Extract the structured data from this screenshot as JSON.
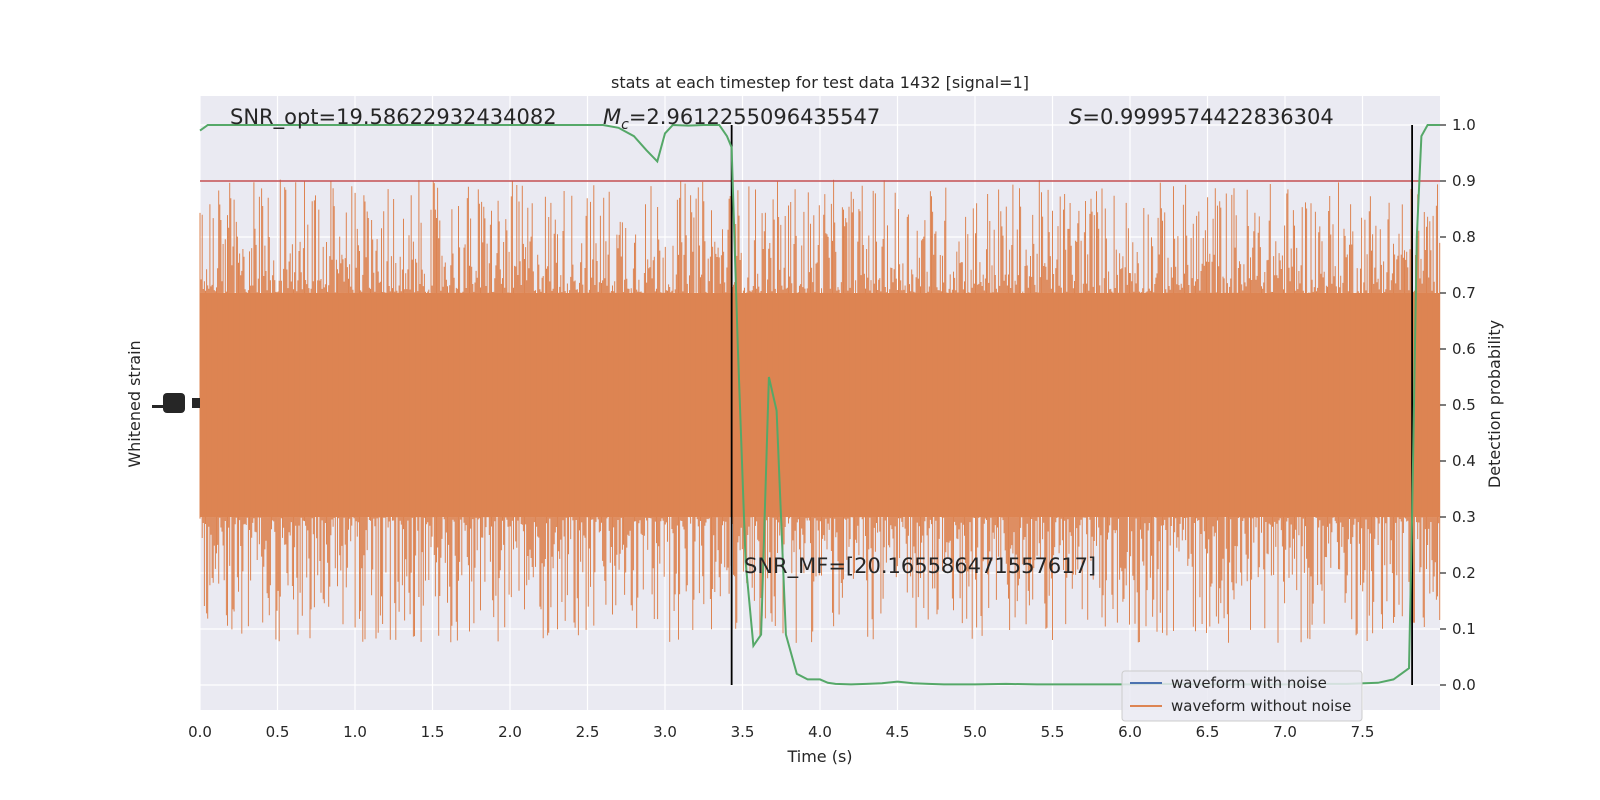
{
  "chart_data": {
    "type": "line",
    "title": "stats at each timestep for test data 1432 [signal=1]",
    "xlabel": "Time (s)",
    "ylabel_left": "Whitened strain",
    "ylabel_right": "Detection probability",
    "xlim": [
      0.0,
      8.0
    ],
    "ylim_right": [
      -0.05,
      1.05
    ],
    "grid": true,
    "x_ticks": [
      "0.0",
      "0.5",
      "1.0",
      "1.5",
      "2.0",
      "2.5",
      "3.0",
      "3.5",
      "4.0",
      "4.5",
      "5.0",
      "5.5",
      "6.0",
      "6.5",
      "7.0",
      "7.5"
    ],
    "y_ticks_right": [
      "0.0",
      "0.1",
      "0.2",
      "0.3",
      "0.4",
      "0.5",
      "0.6",
      "0.7",
      "0.8",
      "0.9",
      "1.0"
    ],
    "annotations": {
      "snr_opt": "SNR_opt=19.58622932434082",
      "mc_symbol": "M",
      "mc_sub": "c",
      "mc_value": "=2.9612255096435547",
      "s_symbol": "S",
      "s_value": "=0.9999574422836304",
      "snr_mf": "SNR_MF=[20.165586471557617]"
    },
    "threshold": 0.9,
    "vlines": [
      3.43,
      7.82
    ],
    "series": [
      {
        "name": "waveform with noise",
        "color": "#4c72b0",
        "values": []
      },
      {
        "name": "waveform without noise",
        "color": "#dd8452",
        "band_low": 0.3,
        "band_high": 0.7,
        "spike_min": 0.0,
        "spike_max": 0.97
      },
      {
        "name": "",
        "color": "#55a868",
        "x": [
          0.0,
          0.05,
          0.2,
          0.4,
          0.6,
          0.8,
          1.0,
          1.2,
          1.4,
          1.6,
          1.8,
          2.0,
          2.2,
          2.4,
          2.6,
          2.7,
          2.8,
          2.88,
          2.95,
          3.0,
          3.05,
          3.15,
          3.25,
          3.35,
          3.4,
          3.43,
          3.47,
          3.52,
          3.57,
          3.62,
          3.67,
          3.72,
          3.78,
          3.85,
          3.92,
          4.0,
          4.05,
          4.1,
          4.2,
          4.3,
          4.4,
          4.5,
          4.6,
          4.7,
          4.8,
          4.9,
          5.0,
          5.2,
          5.4,
          5.6,
          5.8,
          6.0,
          6.2,
          6.5,
          6.8,
          7.0,
          7.2,
          7.4,
          7.6,
          7.7,
          7.75,
          7.8,
          7.82,
          7.85,
          7.88,
          7.92,
          7.96,
          8.0
        ],
        "y": [
          0.99,
          1.0,
          1.0,
          1.0,
          1.0,
          1.0,
          1.0,
          1.0,
          1.0,
          1.0,
          1.0,
          1.0,
          1.0,
          1.0,
          1.0,
          0.995,
          0.98,
          0.955,
          0.935,
          0.985,
          1.0,
          0.999,
          1.0,
          1.0,
          0.98,
          0.96,
          0.6,
          0.22,
          0.07,
          0.09,
          0.55,
          0.49,
          0.09,
          0.02,
          0.01,
          0.01,
          0.004,
          0.002,
          0.001,
          0.002,
          0.003,
          0.006,
          0.003,
          0.002,
          0.001,
          0.001,
          0.001,
          0.002,
          0.001,
          0.001,
          0.001,
          0.001,
          0.002,
          0.001,
          0.001,
          0.001,
          0.002,
          0.002,
          0.004,
          0.01,
          0.02,
          0.03,
          0.3,
          0.8,
          0.98,
          1.0,
          1.0,
          1.0
        ]
      },
      {
        "name": "",
        "color": "#c44e52",
        "role": "threshold"
      }
    ]
  },
  "legend": {
    "placement": "lower-right",
    "items": [
      {
        "label": "waveform with noise",
        "color": "#4c72b0"
      },
      {
        "label": "waveform without noise",
        "color": "#dd8452"
      }
    ]
  },
  "colors": {
    "plot_bg": "#eaeaf2",
    "grid": "#ffffff",
    "strain": "#dd8452",
    "probability": "#55a868",
    "threshold": "#c44e52",
    "vline": "#000000"
  }
}
